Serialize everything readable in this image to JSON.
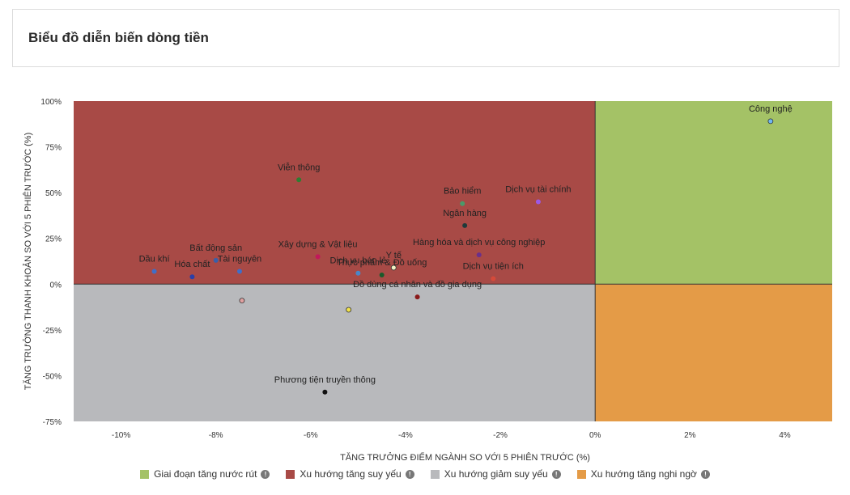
{
  "page": {
    "title": "Biểu đồ diễn biến dòng tiền"
  },
  "chart_data": {
    "type": "scatter",
    "title": "",
    "xlabel": "TĂNG TRƯỞNG ĐIỂM NGÀNH SO VỚI 5 PHIÊN TRƯỚC (%)",
    "ylabel": "TĂNG TRƯỞNG THANH KHOẢN SO VỚI 5 PHIÊN TRƯỚC (%)",
    "xlim": [
      -11,
      5
    ],
    "ylim": [
      -75,
      100
    ],
    "x_ticks": [
      -10,
      -8,
      -6,
      -4,
      -2,
      0,
      2,
      4
    ],
    "x_tick_labels": [
      "-10%",
      "-8%",
      "-6%",
      "-4%",
      "-2%",
      "0%",
      "2%",
      "4%"
    ],
    "y_ticks": [
      100,
      75,
      50,
      25,
      0,
      -25,
      -50,
      -75
    ],
    "y_tick_labels": [
      "100%",
      "75%",
      "50%",
      "25%",
      "0%",
      "-25%",
      "-50%",
      "-75%"
    ],
    "legend_position": "bottom",
    "quadrants": [
      {
        "name": "Giai đoạn tăng nước rút",
        "color": "#a4c266",
        "x_sign": "positive",
        "y_sign": "positive"
      },
      {
        "name": "Xu hướng tăng suy yếu",
        "color": "#a84a46",
        "x_sign": "negative",
        "y_sign": "positive"
      },
      {
        "name": "Xu hướng giảm suy yếu",
        "color": "#b8b9bc",
        "x_sign": "negative",
        "y_sign": "negative"
      },
      {
        "name": "Xu hướng tăng nghi ngờ",
        "color": "#e49b47",
        "x_sign": "positive",
        "y_sign": "negative"
      }
    ],
    "points": [
      {
        "label": "Công nghệ",
        "x": 3.7,
        "y": 89,
        "color": "#6fb7f0"
      },
      {
        "label": "Viễn thông",
        "x": -6.25,
        "y": 57,
        "color": "#2e7d32"
      },
      {
        "label": "Bảo hiểm",
        "x": -2.8,
        "y": 44,
        "color": "#4a9a6a"
      },
      {
        "label": "Dịch vụ tài chính",
        "x": -1.2,
        "y": 45,
        "color": "#9b59e6"
      },
      {
        "label": "Ngân hàng",
        "x": -2.75,
        "y": 32,
        "color": "#1f3a3a"
      },
      {
        "label": "Hàng hóa và dịch vụ công nghiệp",
        "x": -2.45,
        "y": 16,
        "color": "#6b2f8a"
      },
      {
        "label": "Xây dựng & Vật liệu",
        "x": -5.85,
        "y": 15,
        "color": "#c2185b"
      },
      {
        "label": "Dịch vụ tiện ích",
        "x": -2.15,
        "y": 3,
        "color": "#d64a3a"
      },
      {
        "label": "Bất động sản",
        "x": -8.0,
        "y": 13,
        "color": "#3a5fa8"
      },
      {
        "label": "Y tế",
        "x": -4.25,
        "y": 9,
        "color": "#f2f2c4"
      },
      {
        "label": "Dịch vụ bán lẻ",
        "x": -5.0,
        "y": 6,
        "color": "#4a86c8"
      },
      {
        "label": "Dầu khí",
        "x": -9.3,
        "y": 7,
        "color": "#3f6ec8"
      },
      {
        "label": "Tài nguyên",
        "x": -7.5,
        "y": 7,
        "color": "#3f6ec8"
      },
      {
        "label": "Hóa chất",
        "x": -8.5,
        "y": 4,
        "color": "#2a3fa8"
      },
      {
        "label": "Thực phẩm & Đồ uống",
        "x": -4.5,
        "y": 5,
        "color": "#1a5a2a"
      },
      {
        "label": "Đồ dùng cá nhân và đồ gia dụng",
        "x": -3.75,
        "y": -7,
        "color": "#8a1a1a"
      },
      {
        "label": "",
        "x": -7.45,
        "y": -9,
        "color": "#e0a0a0"
      },
      {
        "label": "",
        "x": -5.2,
        "y": -14,
        "color": "#f3e34a"
      },
      {
        "label": "Phương tiện truyền thông",
        "x": -5.7,
        "y": -59,
        "color": "#111111"
      }
    ],
    "legend": [
      {
        "label": "Giai đoạn tăng nước rút",
        "color": "#a4c266"
      },
      {
        "label": "Xu hướng tăng suy yếu",
        "color": "#a84a46"
      },
      {
        "label": "Xu hướng giảm suy yếu",
        "color": "#b8b9bc"
      },
      {
        "label": "Xu hướng tăng nghi ngờ",
        "color": "#e49b47"
      }
    ]
  }
}
